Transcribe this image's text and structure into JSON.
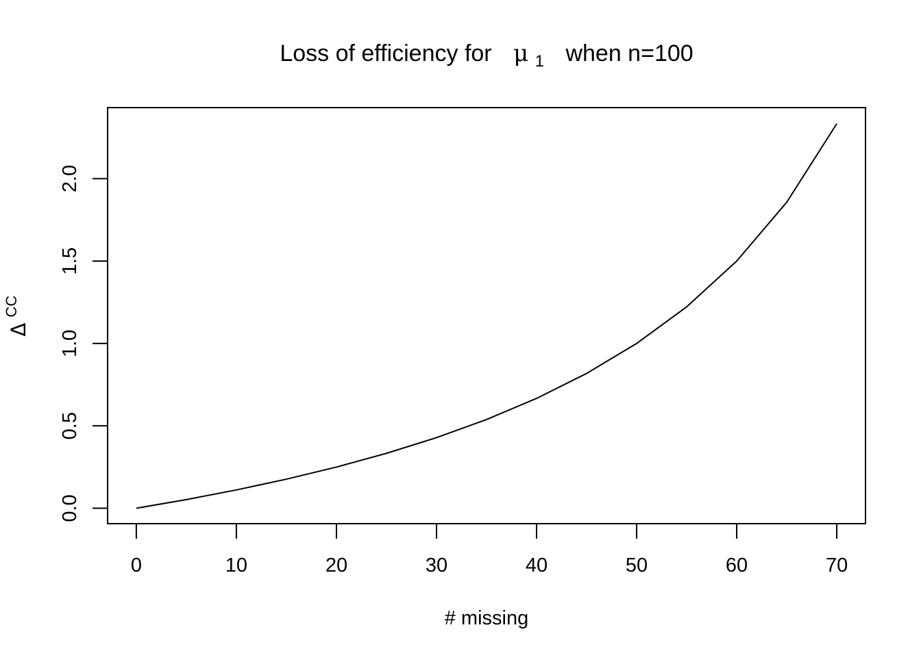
{
  "chart_data": {
    "type": "line",
    "title_prefix": "Loss of efficiency for",
    "title_symbol": "μ",
    "title_subscript": "1",
    "title_suffix": "when n=100",
    "xlabel": "# missing",
    "ylabel_symbol": "Δ",
    "ylabel_superscript": "CC",
    "xlim": [
      -2.87,
      72.87
    ],
    "ylim": [
      -0.0935,
      2.4311
    ],
    "x_ticks": [
      0,
      10,
      20,
      30,
      40,
      50,
      60,
      70
    ],
    "y_ticks": [
      0.0,
      0.5,
      1.0,
      1.5,
      2.0
    ],
    "x_tick_labels": [
      "0",
      "10",
      "20",
      "30",
      "40",
      "50",
      "60",
      "70"
    ],
    "y_tick_labels": [
      "0.0",
      "0.5",
      "1.0",
      "1.5",
      "2.0"
    ],
    "grid": false,
    "series": [
      {
        "x": [
          0,
          5,
          10,
          15,
          20,
          25,
          30,
          35,
          40,
          45,
          50,
          55,
          60,
          65,
          70
        ],
        "y": [
          0.0,
          0.0526,
          0.1111,
          0.1765,
          0.25,
          0.3333,
          0.4286,
          0.5385,
          0.6667,
          0.8182,
          1.0,
          1.2222,
          1.5,
          1.8571,
          2.3333
        ],
        "color": "#000000"
      }
    ]
  }
}
